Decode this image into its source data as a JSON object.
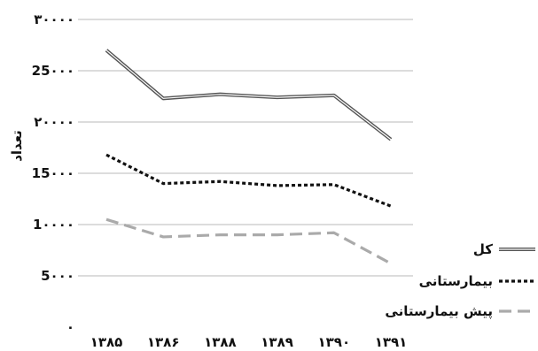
{
  "chart_data": {
    "type": "line",
    "categories": [
      "۱۳۸۵",
      "۱۳۸۶",
      "۱۳۸۸",
      "۱۳۸۹",
      "۱۳۹۰",
      "۱۳۹۱"
    ],
    "ylabel": "تعداد",
    "ylim": [
      0,
      30000
    ],
    "yticks": [
      {
        "value": 0,
        "label": "۰"
      },
      {
        "value": 5000,
        "label": "5۰۰۰"
      },
      {
        "value": 10000,
        "label": "1۰۰۰۰"
      },
      {
        "value": 15000,
        "label": "15۰۰۰"
      },
      {
        "value": 20000,
        "label": "۲۰۰۰۰"
      },
      {
        "value": 25000,
        "label": "25۰۰۰"
      },
      {
        "value": 30000,
        "label": "۳۰۰۰۰"
      }
    ],
    "grid": true,
    "legend_position": "right",
    "series": [
      {
        "name": "کل",
        "values": [
          27000,
          22300,
          22700,
          22400,
          22600,
          18300
        ],
        "style": "solid-double",
        "color": "#555555"
      },
      {
        "name": "بیمارستانی",
        "values": [
          16800,
          14000,
          14200,
          13800,
          13900,
          11800
        ],
        "style": "dotted",
        "color": "#111111"
      },
      {
        "name": "پیش بیمارستانی",
        "values": [
          10500,
          8800,
          9000,
          9000,
          9200,
          6200
        ],
        "style": "dashed",
        "color": "#aaaaaa"
      }
    ]
  }
}
